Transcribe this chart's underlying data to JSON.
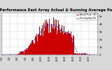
{
  "title": "Solar PV/Inverter Performance East Array Actual & Running Average Power Output",
  "title_fontsize": 3.8,
  "background_color": "#d8d8d8",
  "plot_bg_color": "#ffffff",
  "grid_color": "#aaaaaa",
  "bar_color": "#cc0000",
  "line_color": "#0000dd",
  "ylim": [
    0,
    5500
  ],
  "ytick_labels": [
    "0",
    "1k",
    "2k",
    "3k",
    "4k",
    "5k"
  ],
  "ytick_vals": [
    0,
    1000,
    2000,
    3000,
    4000,
    5000
  ],
  "n_bars": 288,
  "peak_idx": 145,
  "peak_val": 5100,
  "legend_labels": [
    "Actual Power (W)",
    "Running Avg (W)"
  ],
  "legend_colors": [
    "#cc0000",
    "#0000dd"
  ]
}
